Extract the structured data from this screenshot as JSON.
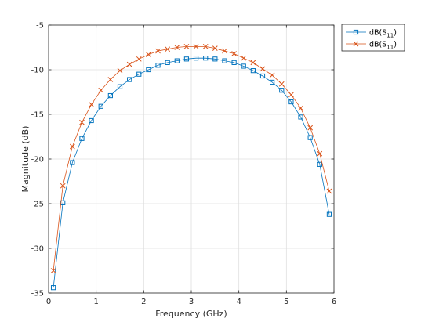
{
  "chart_data": {
    "type": "line",
    "title": "",
    "xlabel": "Frequency (GHz)",
    "ylabel": "Magnitude (dB)",
    "xlim": [
      0,
      6
    ],
    "ylim": [
      -35,
      -5
    ],
    "xticks": [
      0,
      1,
      2,
      3,
      4,
      5,
      6
    ],
    "xtick_labels": [
      "0",
      "1",
      "2",
      "3",
      "4",
      "5",
      "6"
    ],
    "yticks": [
      -35,
      -30,
      -25,
      -20,
      -15,
      -10,
      -5
    ],
    "ytick_labels": [
      "-35",
      "-30",
      "-25",
      "-20",
      "-15",
      "-10",
      "-5"
    ],
    "grid": true,
    "legend_position": "outside-top-right",
    "x": [
      0.1,
      0.3,
      0.5,
      0.7,
      0.9,
      1.1,
      1.3,
      1.5,
      1.7,
      1.9,
      2.1,
      2.3,
      2.5,
      2.7,
      2.9,
      3.1,
      3.3,
      3.5,
      3.7,
      3.9,
      4.1,
      4.3,
      4.5,
      4.7,
      4.9,
      5.1,
      5.3,
      5.5,
      5.7,
      5.9
    ],
    "series": [
      {
        "name": "dB(S11)",
        "legend_base": "dB(S",
        "legend_sub": "11",
        "legend_close": ")",
        "color": "#0072BD",
        "marker": "square",
        "values": [
          -34.4,
          -24.9,
          -20.4,
          -17.7,
          -15.7,
          -14.1,
          -12.9,
          -11.9,
          -11.1,
          -10.5,
          -10.0,
          -9.5,
          -9.2,
          -9.0,
          -8.8,
          -8.7,
          -8.7,
          -8.8,
          -9.0,
          -9.2,
          -9.6,
          -10.1,
          -10.7,
          -11.4,
          -12.3,
          -13.6,
          -15.3,
          -17.6,
          -20.6,
          -26.2
        ]
      },
      {
        "name": "dB(S11)",
        "legend_base": "dB(S",
        "legend_sub": "11",
        "legend_close": ")",
        "color": "#D95319",
        "marker": "x",
        "values": [
          -32.5,
          -23.0,
          -18.6,
          -15.9,
          -13.9,
          -12.3,
          -11.1,
          -10.1,
          -9.4,
          -8.8,
          -8.3,
          -7.9,
          -7.7,
          -7.5,
          -7.4,
          -7.4,
          -7.4,
          -7.6,
          -7.9,
          -8.2,
          -8.7,
          -9.2,
          -9.9,
          -10.6,
          -11.6,
          -12.8,
          -14.3,
          -16.5,
          -19.4,
          -23.6
        ]
      }
    ]
  }
}
